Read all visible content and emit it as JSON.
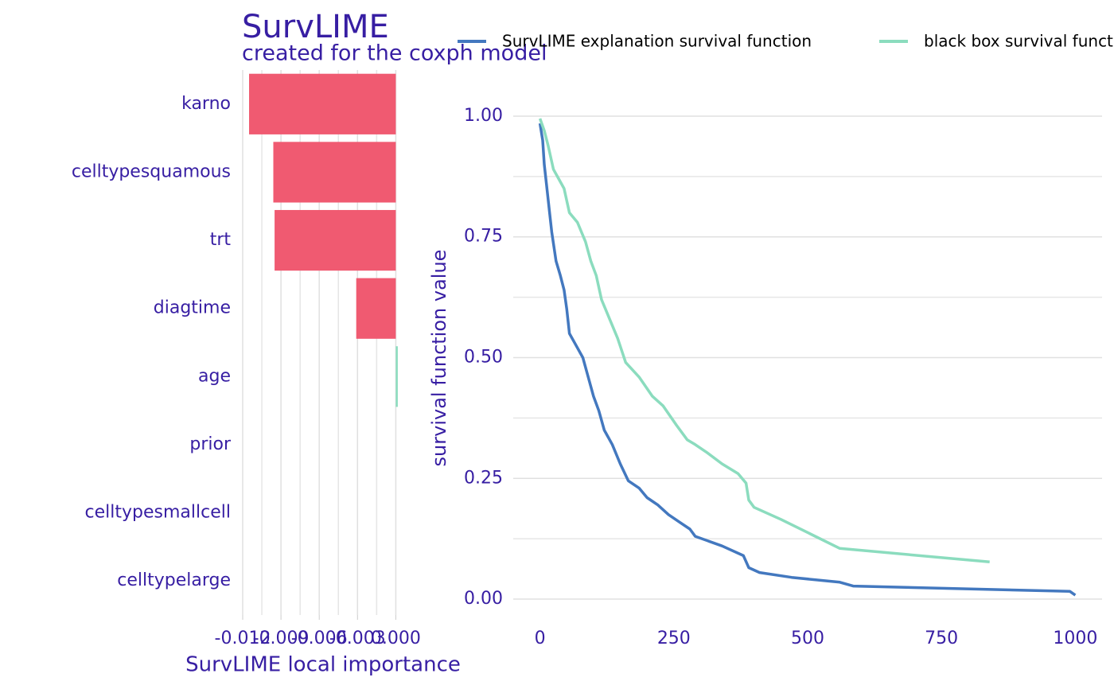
{
  "chart_data": [
    {
      "type": "bar",
      "orientation": "horizontal",
      "title": "SurvLIME",
      "subtitle": "created for the coxph model",
      "x_label": "SurvLIME local importance",
      "categories": [
        "karno",
        "celltypesquamous",
        "trt",
        "diagtime",
        "age",
        "prior",
        "celltypesmallcell",
        "celltypelarge"
      ],
      "values": [
        -0.0115,
        -0.0096,
        -0.0095,
        -0.0031,
        0.0001,
        0,
        0,
        0
      ],
      "negative_color": "#f05a71",
      "positive_color": "#8bdcbe",
      "xlim": [
        -0.012,
        0.0001
      ],
      "xticks": [
        -0.012,
        -0.009,
        -0.006,
        -0.003,
        {
          "value": 0,
          "label": "0.000"
        }
      ],
      "grid": true
    },
    {
      "type": "line",
      "y_label": "survival function value",
      "series": [
        {
          "name": "SurvLIME explanation survival function",
          "color": "#4378bf",
          "x": [
            0,
            5,
            8,
            12,
            18,
            22,
            30,
            38,
            45,
            50,
            55,
            65,
            80,
            90,
            100,
            110,
            120,
            135,
            150,
            165,
            185,
            200,
            220,
            240,
            260,
            280,
            290,
            340,
            380,
            390,
            410,
            470,
            560,
            585,
            990,
            1000
          ],
          "values": [
            0.985,
            0.95,
            0.9,
            0.86,
            0.8,
            0.76,
            0.7,
            0.67,
            0.64,
            0.6,
            0.55,
            0.53,
            0.5,
            0.46,
            0.42,
            0.39,
            0.35,
            0.32,
            0.28,
            0.245,
            0.23,
            0.21,
            0.195,
            0.175,
            0.16,
            0.145,
            0.13,
            0.11,
            0.09,
            0.065,
            0.055,
            0.045,
            0.035,
            0.027,
            0.016,
            0.008
          ]
        },
        {
          "name": "black box survival function",
          "color": "#8bdcbe",
          "x": [
            0,
            8,
            15,
            25,
            35,
            45,
            55,
            70,
            85,
            95,
            105,
            115,
            130,
            145,
            160,
            185,
            210,
            230,
            255,
            275,
            290,
            310,
            340,
            370,
            385,
            390,
            400,
            450,
            560,
            840
          ],
          "values": [
            0.995,
            0.97,
            0.94,
            0.89,
            0.87,
            0.85,
            0.8,
            0.78,
            0.74,
            0.7,
            0.67,
            0.62,
            0.58,
            0.54,
            0.49,
            0.46,
            0.42,
            0.4,
            0.36,
            0.33,
            0.32,
            0.305,
            0.28,
            0.26,
            0.24,
            0.205,
            0.19,
            0.165,
            0.105,
            0.077
          ]
        }
      ],
      "xlim": [
        -50,
        1050
      ],
      "xticks": [
        0,
        250,
        500,
        750,
        1000
      ],
      "ylim": [
        -0.028,
        1.028
      ],
      "yticks": [
        {
          "value": 0,
          "label": "0.00"
        },
        {
          "value": 0.25,
          "label": "0.25"
        },
        {
          "value": 0.5,
          "label": "0.50"
        },
        {
          "value": 0.75,
          "label": "0.75"
        },
        {
          "value": 1,
          "label": "1.00"
        }
      ],
      "grid": true
    }
  ]
}
